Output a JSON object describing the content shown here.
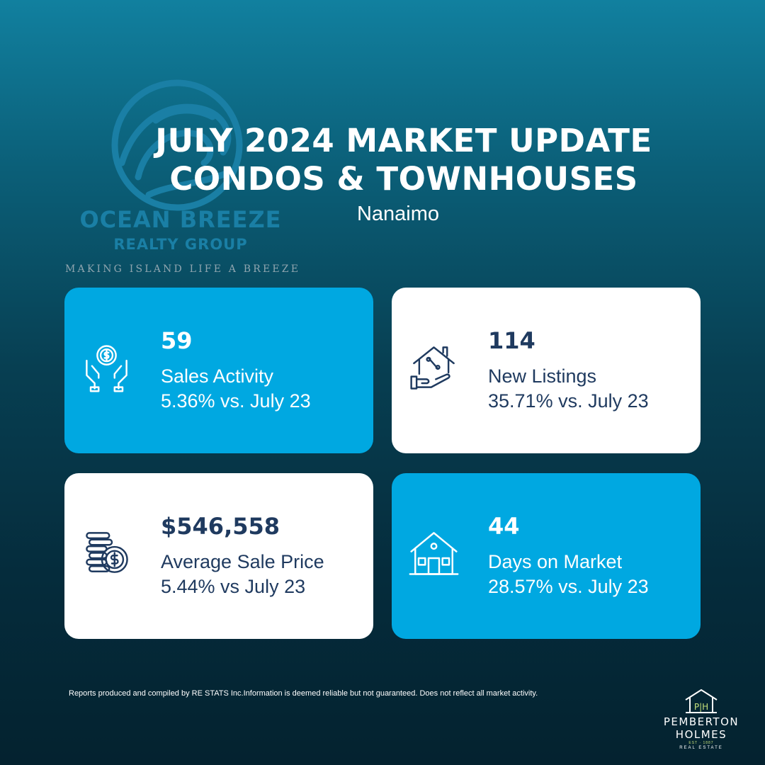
{
  "logo": {
    "name": "OCEAN BREEZE",
    "sub": "REALTY GROUP",
    "tagline": "MAKING ISLAND LIFE A BREEZE",
    "color": "#1a7fa5"
  },
  "header": {
    "title_line1": "JULY 2024 MARKET UPDATE",
    "title_line2": "CONDOS & TOWNHOUSES",
    "subtitle": "Nanaimo"
  },
  "cards": [
    {
      "value": "59",
      "label": "Sales Activity",
      "change": "5.36% vs. July 23",
      "icon": "hands-coin-icon",
      "bg": "#00a8e1"
    },
    {
      "value": "114",
      "label": "New Listings",
      "change": "35.71% vs. July 23",
      "icon": "house-percent-hand-icon",
      "bg": "#ffffff"
    },
    {
      "value": "$546,558",
      "label": "Average Sale Price",
      "change": "5.44% vs July 23",
      "icon": "coin-stack-icon",
      "bg": "#ffffff"
    },
    {
      "value": "44",
      "label": "Days on Market",
      "change": "28.57% vs. July 23",
      "icon": "house-icon",
      "bg": "#00a8e1"
    }
  ],
  "footer": {
    "disclaimer": "Reports produced and compiled by RE  STATS Inc.Information is deemed reliable but not guaranteed. Does not reflect all market activity.",
    "brand_line1": "PEMBERTON",
    "brand_line2": "HOLMES",
    "brand_est": "EST · 1887",
    "brand_re": "REAL ESTATE",
    "brand_monogram": "P|H"
  }
}
